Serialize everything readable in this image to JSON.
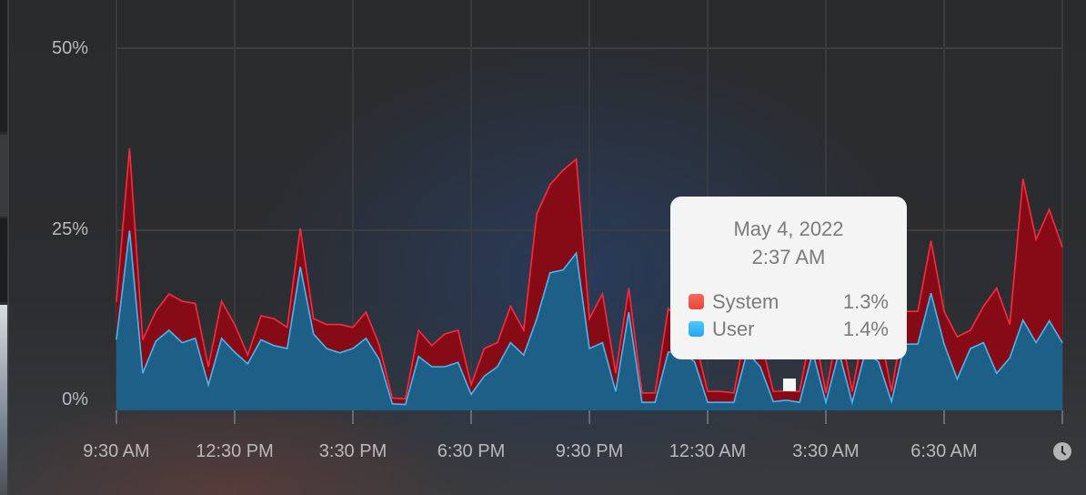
{
  "chart_data": {
    "type": "area",
    "stacked": true,
    "y_ticks": [
      "0%",
      "25%",
      "50%"
    ],
    "ylim": [
      0,
      50
    ],
    "x_ticks": [
      "9:30 AM",
      "12:30 PM",
      "3:30 PM",
      "6:30 PM",
      "9:30 PM",
      "12:30 AM",
      "3:30 AM",
      "6:30 AM"
    ],
    "grid": true,
    "x": [
      "9:30 AM",
      "9:50 AM",
      "10:10 AM",
      "10:30 AM",
      "10:50 AM",
      "11:10 AM",
      "11:30 AM",
      "11:50 AM",
      "12:10 PM",
      "12:30 PM",
      "12:50 PM",
      "1:10 PM",
      "1:30 PM",
      "1:50 PM",
      "2:10 PM",
      "2:30 PM",
      "2:50 PM",
      "3:10 PM",
      "3:30 PM",
      "3:50 PM",
      "4:10 PM",
      "4:30 PM",
      "4:50 PM",
      "5:10 PM",
      "5:30 PM",
      "5:50 PM",
      "6:10 PM",
      "6:30 PM",
      "6:50 PM",
      "7:10 PM",
      "7:30 PM",
      "7:50 PM",
      "8:10 PM",
      "8:30 PM",
      "8:50 PM",
      "9:10 PM",
      "9:30 PM",
      "9:50 PM",
      "10:10 PM",
      "10:30 PM",
      "10:50 PM",
      "11:10 PM",
      "11:30 PM",
      "11:50 PM",
      "12:10 AM",
      "12:30 AM",
      "12:50 AM",
      "1:10 AM",
      "1:30 AM",
      "1:50 AM",
      "2:10 AM",
      "2:30 AM",
      "2:50 AM",
      "3:10 AM",
      "3:30 AM",
      "3:50 AM",
      "4:10 AM",
      "4:30 AM",
      "4:50 AM",
      "5:10 AM",
      "5:30 AM",
      "5:50 AM",
      "6:10 AM",
      "6:30 AM",
      "6:50 AM",
      "7:10 AM",
      "7:30 AM",
      "7:50 AM",
      "8:10 AM",
      "8:30 AM",
      "8:50 AM",
      "9:10 AM",
      "9:30 AM"
    ],
    "series": [
      {
        "name": "User",
        "color": "#3ab4f5",
        "fill": "#1e5f87",
        "line": "#45b8f0",
        "values": [
          9.7,
          24.7,
          5.1,
          9.5,
          11,
          9.3,
          9.9,
          3.5,
          9.9,
          8,
          6.4,
          9.7,
          8.9,
          8.5,
          19.7,
          10.5,
          8.5,
          7.9,
          8.5,
          9.9,
          7,
          0.9,
          0.8,
          7.4,
          6,
          6,
          6.6,
          2.2,
          4.7,
          6,
          9.3,
          7.6,
          12.6,
          18.9,
          19.3,
          21.6,
          8.5,
          9.3,
          2.6,
          13.5,
          1.1,
          1.1,
          8,
          8,
          6.7,
          1.1,
          1.1,
          1.1,
          8,
          6,
          1.2,
          1.4,
          1.1,
          8,
          1.1,
          8,
          1.1,
          8,
          6.7,
          1.2,
          9.1,
          9.1,
          16.1,
          9.1,
          4.3,
          8.5,
          9.3,
          5.1,
          7.2,
          12.4,
          9.3,
          12.3,
          9.3
        ]
      },
      {
        "name": "System",
        "color": "#f0564a",
        "fill": "#870b17",
        "line": "#ff2a3c",
        "values": [
          5.2,
          11.3,
          4.6,
          4.1,
          5,
          5.7,
          4.8,
          2.5,
          5.1,
          3.8,
          1.2,
          3.3,
          3.7,
          2.9,
          5.3,
          2.1,
          3.3,
          3.9,
          2.9,
          3.6,
          2,
          0.8,
          0.8,
          3.6,
          2.9,
          4.5,
          4.4,
          1.3,
          3.8,
          3.3,
          5,
          3.4,
          14.4,
          12.1,
          13.7,
          12.9,
          4.1,
          6.7,
          2.5,
          3.3,
          1.3,
          1.3,
          6,
          4,
          3.3,
          1.5,
          1.5,
          1.3,
          4,
          4,
          1.4,
          1.3,
          1.5,
          4,
          1.3,
          4,
          1.5,
          4,
          5.3,
          1.4,
          4.5,
          4.5,
          7.2,
          4.5,
          5.8,
          2.5,
          5,
          11.7,
          4.6,
          19.4,
          14.2,
          15.3,
          13.1
        ]
      }
    ],
    "tooltip": {
      "date": "May 4, 2022",
      "time": "2:37 AM",
      "rows": [
        {
          "name": "System",
          "value": "1.3%",
          "color": "#f0564a"
        },
        {
          "name": "User",
          "value": "1.4%",
          "color": "#3ab4f5"
        }
      ]
    }
  },
  "icons": {
    "time_range": "clock-icon"
  }
}
